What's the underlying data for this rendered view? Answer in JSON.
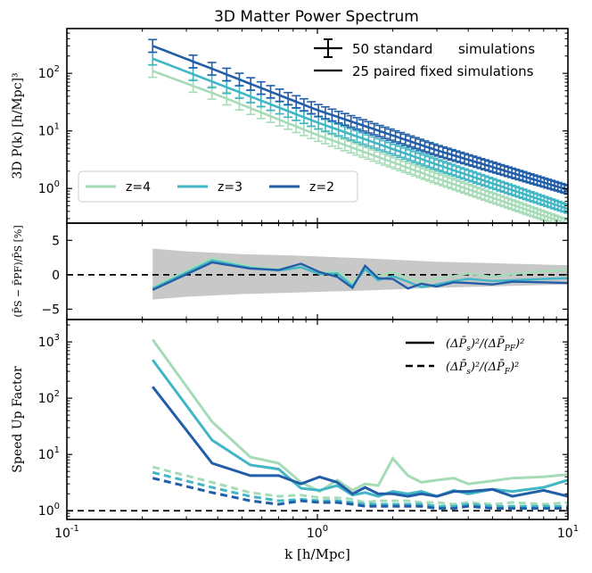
{
  "chart_data": {
    "title": "3D Matter Power Spectrum",
    "xlabel": "k [h/Mpc]",
    "x_scale": "log",
    "xlim": [
      0.1,
      10
    ],
    "x_ticks": [
      {
        "value": 0.1,
        "base": "10",
        "exp": "-1"
      },
      {
        "value": 1,
        "base": "10",
        "exp": "0"
      },
      {
        "value": 10,
        "base": "10",
        "exp": "1"
      }
    ],
    "colors": {
      "z4": "#a6dbb7",
      "z3": "#41b6c4",
      "z2": "#225ea8",
      "band": "#c8c8c8",
      "ref": "#000000"
    },
    "panels": [
      {
        "id": "pk",
        "type": "line",
        "y_scale": "log",
        "ylabel": "3D P(k) [h/Mpc]³",
        "ylim": [
          0.25,
          600
        ],
        "y_ticks": [
          {
            "value": 1,
            "base": "10",
            "exp": "0"
          },
          {
            "value": 10,
            "base": "10",
            "exp": "1"
          },
          {
            "value": 100,
            "base": "10",
            "exp": "2"
          }
        ],
        "legend_top": [
          {
            "label": "50 standard      simulations",
            "style": "errorbar"
          },
          {
            "label": "25 paired fixed simulations",
            "style": "solid"
          }
        ],
        "legend_bottom": [
          {
            "label": "z=4",
            "color_key": "z4"
          },
          {
            "label": "z=3",
            "color_key": "z3"
          },
          {
            "label": "z=2",
            "color_key": "z2"
          }
        ],
        "power_law": {
          "k": [
            0.22,
            0.4,
            1.0,
            3.0,
            10.0
          ]
        },
        "series": [
          {
            "name": "z=4",
            "color_key": "z4",
            "y": [
              110,
              42,
              8.5,
              1.5,
              0.24
            ],
            "errbar_frac": 0.18
          },
          {
            "name": "z=3",
            "color_key": "z3",
            "y": [
              180,
              66,
              14,
              2.6,
              0.44
            ],
            "errbar_frac": 0.18
          },
          {
            "name": "z=2",
            "color_key": "z2",
            "y": [
              300,
              110,
              23,
              4.6,
              0.95
            ],
            "errbar_frac": 0.18
          }
        ]
      },
      {
        "id": "ratio",
        "type": "line",
        "y_scale": "linear",
        "ylabel": "(P̄S − P̄PF)/P̄S [%]",
        "ylim": [
          -6.5,
          7.5
        ],
        "y_ticks": [
          {
            "value": -5,
            "label": "−5"
          },
          {
            "value": 0,
            "label": "0"
          },
          {
            "value": 5,
            "label": "5"
          }
        ],
        "reference_line": 0,
        "band": {
          "k": [
            0.22,
            0.3,
            0.5,
            0.8,
            1.5,
            3,
            6,
            10
          ],
          "upper": [
            3.8,
            3.4,
            3.0,
            2.8,
            2.4,
            1.9,
            1.6,
            1.4
          ],
          "lower": [
            -3.6,
            -3.2,
            -2.8,
            -2.6,
            -2.3,
            -1.9,
            -1.6,
            -1.4
          ]
        },
        "series": [
          {
            "name": "z=4",
            "color_key": "z4",
            "x": [
              0.22,
              0.38,
              0.54,
              0.7,
              0.86,
              1.02,
              1.2,
              1.38,
              1.55,
              1.75,
              2.0,
              2.3,
              2.6,
              3.0,
              3.5,
              4.0,
              5.0,
              6.0,
              8.0,
              10.0
            ],
            "y": [
              -1.8,
              2.4,
              1.2,
              0.8,
              1.5,
              0.3,
              0.5,
              -1.2,
              1.1,
              -0.2,
              0.4,
              -0.5,
              -1.0,
              -0.6,
              -0.2,
              0.2,
              -0.3,
              0.1,
              0.5,
              0.8
            ]
          },
          {
            "name": "z=3",
            "color_key": "z3",
            "x": [
              0.22,
              0.38,
              0.54,
              0.7,
              0.86,
              1.02,
              1.2,
              1.38,
              1.55,
              1.75,
              2.0,
              2.3,
              2.6,
              3.0,
              3.5,
              4.0,
              5.0,
              6.0,
              8.0,
              10.0
            ],
            "y": [
              -2.0,
              2.1,
              1.0,
              0.6,
              1.1,
              0.1,
              0.2,
              -1.6,
              0.8,
              -0.8,
              -0.2,
              -1.0,
              -1.8,
              -1.4,
              -0.9,
              -0.6,
              -0.9,
              -0.8,
              -0.6,
              -0.5
            ]
          },
          {
            "name": "z=2",
            "color_key": "z2",
            "x": [
              0.22,
              0.38,
              0.54,
              0.7,
              0.86,
              1.02,
              1.2,
              1.38,
              1.55,
              1.75,
              2.0,
              2.3,
              2.6,
              3.0,
              3.5,
              4.0,
              5.0,
              6.0,
              8.0,
              10.0
            ],
            "y": [
              -2.2,
              1.8,
              0.9,
              0.7,
              1.6,
              0.4,
              -0.3,
              -1.9,
              1.3,
              -0.5,
              -0.6,
              -2.0,
              -1.3,
              -1.7,
              -1.1,
              -1.2,
              -1.4,
              -1.0,
              -1.1,
              -1.2
            ]
          }
        ]
      },
      {
        "id": "speedup",
        "type": "line",
        "y_scale": "log",
        "ylabel": "Speed Up Factor",
        "ylim": [
          0.7,
          2500
        ],
        "y_ticks": [
          {
            "value": 1,
            "base": "10",
            "exp": "0"
          },
          {
            "value": 10,
            "base": "10",
            "exp": "1"
          },
          {
            "value": 100,
            "base": "10",
            "exp": "2"
          },
          {
            "value": 1000,
            "base": "10",
            "exp": "3"
          }
        ],
        "reference_line": 1,
        "legend": [
          {
            "label_main": "(ΔP̄",
            "label_s": "s",
            "label_mid": ")²/(ΔP̄",
            "label_sub": "PF",
            "label_end": ")²",
            "style": "solid"
          },
          {
            "label_main": "(ΔP̄",
            "label_s": "s",
            "label_mid": ")²/(ΔP̄",
            "label_sub": "F",
            "label_end": ")²",
            "style": "dashed"
          }
        ],
        "x": [
          0.22,
          0.38,
          0.54,
          0.7,
          0.86,
          1.02,
          1.2,
          1.38,
          1.55,
          1.75,
          2.0,
          2.3,
          2.6,
          3.0,
          3.5,
          4.0,
          5.0,
          6.0,
          8.0,
          10.0
        ],
        "series": [
          {
            "name": "z=4 paired fixed",
            "color_key": "z4",
            "style": "solid",
            "y": [
              1100,
              38,
              9,
              7,
              3.2,
              2.2,
              3.5,
              2.3,
              3.0,
              2.8,
              8.5,
              4.2,
              3.2,
              3.5,
              3.8,
              3.0,
              3.4,
              3.8,
              4.0,
              4.4
            ]
          },
          {
            "name": "z=3 paired fixed",
            "color_key": "z3",
            "style": "solid",
            "y": [
              480,
              18,
              6.5,
              5.5,
              2.5,
              2.3,
              2.8,
              1.9,
              2.1,
              1.8,
              2.2,
              2.0,
              2.2,
              1.8,
              2.3,
              2.0,
              2.4,
              2.2,
              2.6,
              3.5
            ]
          },
          {
            "name": "z=2 paired fixed",
            "color_key": "z2",
            "style": "solid",
            "y": [
              160,
              7,
              4.2,
              4.2,
              3.0,
              4.0,
              3.2,
              2.0,
              2.6,
              2.0,
              2.0,
              1.8,
              2.0,
              1.8,
              2.2,
              2.2,
              2.4,
              1.8,
              2.3,
              1.8
            ]
          },
          {
            "name": "z=4 fixed",
            "color_key": "z4",
            "style": "dashed",
            "y": [
              6.0,
              3.2,
              2.1,
              1.8,
              1.9,
              1.7,
              1.7,
              1.6,
              1.4,
              1.5,
              1.5,
              1.5,
              1.4,
              1.4,
              1.3,
              1.4,
              1.3,
              1.4,
              1.3,
              1.4
            ]
          },
          {
            "name": "z=3 fixed",
            "color_key": "z3",
            "style": "dashed",
            "y": [
              4.8,
              2.6,
              1.8,
              1.5,
              1.6,
              1.5,
              1.5,
              1.4,
              1.3,
              1.3,
              1.3,
              1.3,
              1.3,
              1.2,
              1.2,
              1.3,
              1.2,
              1.2,
              1.2,
              1.2
            ]
          },
          {
            "name": "z=2 fixed",
            "color_key": "z2",
            "style": "dashed",
            "y": [
              3.8,
              2.1,
              1.5,
              1.3,
              1.5,
              1.4,
              1.4,
              1.3,
              1.2,
              1.2,
              1.2,
              1.2,
              1.2,
              1.1,
              1.1,
              1.2,
              1.1,
              1.1,
              1.1,
              1.1
            ]
          }
        ]
      }
    ]
  }
}
